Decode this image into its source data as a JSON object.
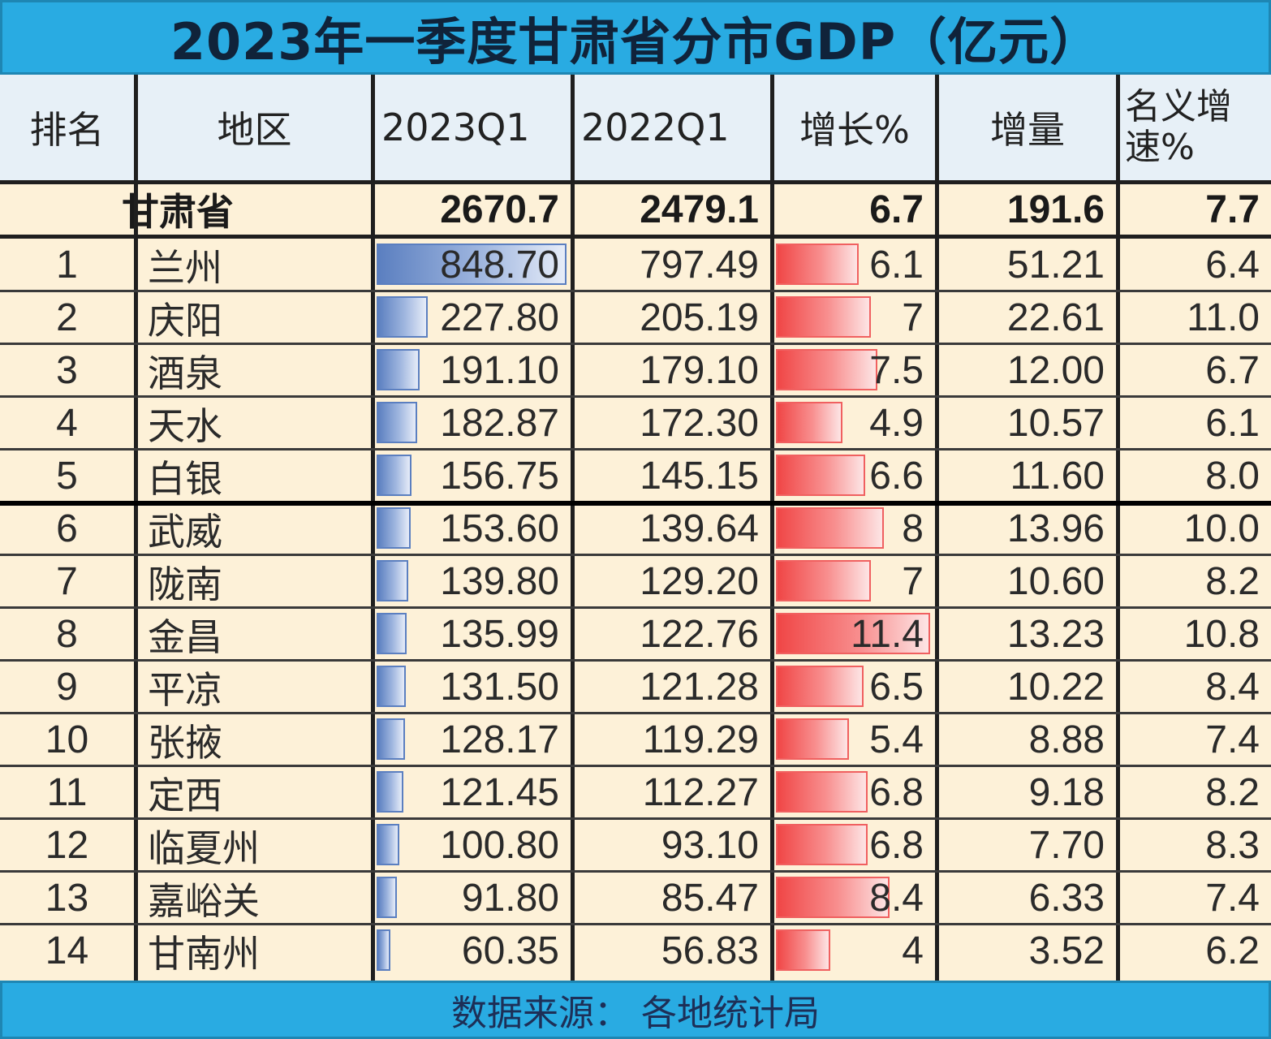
{
  "title": "2023年一季度甘肃省分市GDP（亿元）",
  "footer": "数据来源：  各地统计局",
  "colors": {
    "header_bar": "#29abe2",
    "row_bg": "#fdf1d8",
    "header_bg": "#e7f0f7",
    "gdp_bar": "#5b7fc0",
    "growth_bar": "#f04646"
  },
  "table": {
    "headers": [
      "排名",
      "地区",
      "2023Q1",
      "2022Q1",
      "增长%",
      "增量",
      "名义增速%"
    ],
    "province": {
      "region": "甘肃省",
      "q1_2023": "2670.7",
      "q1_2022": "2479.1",
      "growth": "6.7",
      "increase": "191.6",
      "nominal": "7.7"
    },
    "rows": [
      {
        "rank": "1",
        "region": "兰州",
        "q1_2023": "848.70",
        "q1_2022": "797.49",
        "growth": "6.1",
        "increase": "51.21",
        "nominal": "6.4"
      },
      {
        "rank": "2",
        "region": "庆阳",
        "q1_2023": "227.80",
        "q1_2022": "205.19",
        "growth": "7",
        "increase": "22.61",
        "nominal": "11.0"
      },
      {
        "rank": "3",
        "region": "酒泉",
        "q1_2023": "191.10",
        "q1_2022": "179.10",
        "growth": "7.5",
        "increase": "12.00",
        "nominal": "6.7"
      },
      {
        "rank": "4",
        "region": "天水",
        "q1_2023": "182.87",
        "q1_2022": "172.30",
        "growth": "4.9",
        "increase": "10.57",
        "nominal": "6.1"
      },
      {
        "rank": "5",
        "region": "白银",
        "q1_2023": "156.75",
        "q1_2022": "145.15",
        "growth": "6.6",
        "increase": "11.60",
        "nominal": "8.0"
      },
      {
        "rank": "6",
        "region": "武威",
        "q1_2023": "153.60",
        "q1_2022": "139.64",
        "growth": "8",
        "increase": "13.96",
        "nominal": "10.0"
      },
      {
        "rank": "7",
        "region": "陇南",
        "q1_2023": "139.80",
        "q1_2022": "129.20",
        "growth": "7",
        "increase": "10.60",
        "nominal": "8.2"
      },
      {
        "rank": "8",
        "region": "金昌",
        "q1_2023": "135.99",
        "q1_2022": "122.76",
        "growth": "11.4",
        "increase": "13.23",
        "nominal": "10.8"
      },
      {
        "rank": "9",
        "region": "平凉",
        "q1_2023": "131.50",
        "q1_2022": "121.28",
        "growth": "6.5",
        "increase": "10.22",
        "nominal": "8.4"
      },
      {
        "rank": "10",
        "region": "张掖",
        "q1_2023": "128.17",
        "q1_2022": "119.29",
        "growth": "5.4",
        "increase": "8.88",
        "nominal": "7.4"
      },
      {
        "rank": "11",
        "region": "定西",
        "q1_2023": "121.45",
        "q1_2022": "112.27",
        "growth": "6.8",
        "increase": "9.18",
        "nominal": "8.2"
      },
      {
        "rank": "12",
        "region": "临夏州",
        "q1_2023": "100.80",
        "q1_2022": "93.10",
        "growth": "6.8",
        "increase": "7.70",
        "nominal": "8.3"
      },
      {
        "rank": "13",
        "region": "嘉峪关",
        "q1_2023": "91.80",
        "q1_2022": "85.47",
        "growth": "8.4",
        "increase": "6.33",
        "nominal": "7.4"
      },
      {
        "rank": "14",
        "region": "甘南州",
        "q1_2023": "60.35",
        "q1_2022": "56.83",
        "growth": "4",
        "increase": "3.52",
        "nominal": "6.2"
      }
    ]
  },
  "chart_data": {
    "type": "table",
    "title": "2023年一季度甘肃省分市GDP（亿元）",
    "columns": [
      "排名",
      "地区",
      "2023Q1",
      "2022Q1",
      "增长%",
      "增量",
      "名义增速%"
    ],
    "categories": [
      "兰州",
      "庆阳",
      "酒泉",
      "天水",
      "白银",
      "武威",
      "陇南",
      "金昌",
      "平凉",
      "张掖",
      "定西",
      "临夏州",
      "嘉峪关",
      "甘南州"
    ],
    "series": [
      {
        "name": "2023Q1",
        "values": [
          848.7,
          227.8,
          191.1,
          182.87,
          156.75,
          153.6,
          139.8,
          135.99,
          131.5,
          128.17,
          121.45,
          100.8,
          91.8,
          60.35
        ]
      },
      {
        "name": "2022Q1",
        "values": [
          797.49,
          205.19,
          179.1,
          172.3,
          145.15,
          139.64,
          129.2,
          122.76,
          121.28,
          119.29,
          112.27,
          93.1,
          85.47,
          56.83
        ]
      },
      {
        "name": "增长%",
        "values": [
          6.1,
          7,
          7.5,
          4.9,
          6.6,
          8,
          7,
          11.4,
          6.5,
          5.4,
          6.8,
          6.8,
          8.4,
          4
        ]
      },
      {
        "name": "增量",
        "values": [
          51.21,
          22.61,
          12.0,
          10.57,
          11.6,
          13.96,
          10.6,
          13.23,
          10.22,
          8.88,
          9.18,
          7.7,
          6.33,
          3.52
        ]
      },
      {
        "name": "名义增速%",
        "values": [
          6.4,
          11.0,
          6.7,
          6.1,
          8.0,
          10.0,
          8.2,
          10.8,
          8.4,
          7.4,
          8.2,
          8.3,
          7.4,
          6.2
        ]
      }
    ],
    "total": {
      "region": "甘肃省",
      "2023Q1": 2670.7,
      "2022Q1": 2479.1,
      "增长%": 6.7,
      "增量": 191.6,
      "名义增速%": 7.7
    },
    "databars": {
      "2023Q1": "blue",
      "增长%": "red"
    }
  }
}
